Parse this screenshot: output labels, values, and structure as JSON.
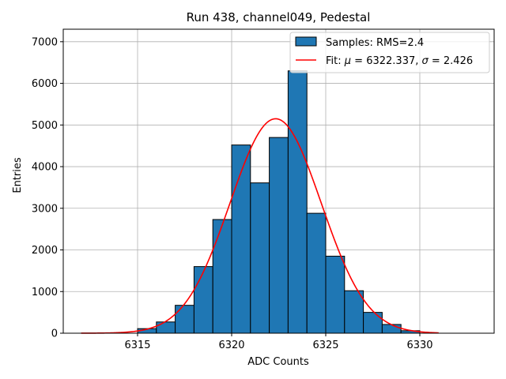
{
  "chart_data": {
    "type": "bar",
    "title": "Run 438, channel049, Pedestal",
    "xlabel": "ADC Counts",
    "ylabel": "Entries",
    "xlim": [
      6311.05,
      6333.95
    ],
    "ylim": [
      0,
      7300
    ],
    "xticks": [
      6315,
      6320,
      6325,
      6330
    ],
    "yticks": [
      0,
      1000,
      2000,
      3000,
      4000,
      5000,
      6000,
      7000
    ],
    "grid": true,
    "legend_position": "top-right",
    "bins": [
      {
        "x0": 6315,
        "x1": 6316,
        "value": 110
      },
      {
        "x0": 6316,
        "x1": 6317,
        "value": 270
      },
      {
        "x0": 6317,
        "x1": 6318,
        "value": 670
      },
      {
        "x0": 6318,
        "x1": 6319,
        "value": 1600
      },
      {
        "x0": 6319,
        "x1": 6320,
        "value": 2730
      },
      {
        "x0": 6320,
        "x1": 6321,
        "value": 4520
      },
      {
        "x0": 6321,
        "x1": 6322,
        "value": 3610
      },
      {
        "x0": 6322,
        "x1": 6323,
        "value": 4700
      },
      {
        "x0": 6323,
        "x1": 6324,
        "value": 6300
      },
      {
        "x0": 6324,
        "x1": 6325,
        "value": 2880
      },
      {
        "x0": 6325,
        "x1": 6326,
        "value": 1850
      },
      {
        "x0": 6326,
        "x1": 6327,
        "value": 1020
      },
      {
        "x0": 6327,
        "x1": 6328,
        "value": 500
      },
      {
        "x0": 6328,
        "x1": 6329,
        "value": 210
      },
      {
        "x0": 6329,
        "x1": 6330,
        "value": 60
      }
    ],
    "fit": {
      "mu": 6322.337,
      "sigma": 2.426,
      "amplitude": 5150,
      "x_range": [
        6312,
        6331
      ]
    },
    "series": [
      {
        "name": "Samples: RMS=2.4",
        "kind": "histogram",
        "color": "#1f77b4"
      },
      {
        "name_prefix": "Fit: ",
        "mu_symbol": "μ",
        "mu_text": " = 6322.337, ",
        "sigma_symbol": "σ",
        "sigma_text": " = 2.426",
        "kind": "line",
        "color": "#ff0000"
      }
    ]
  }
}
